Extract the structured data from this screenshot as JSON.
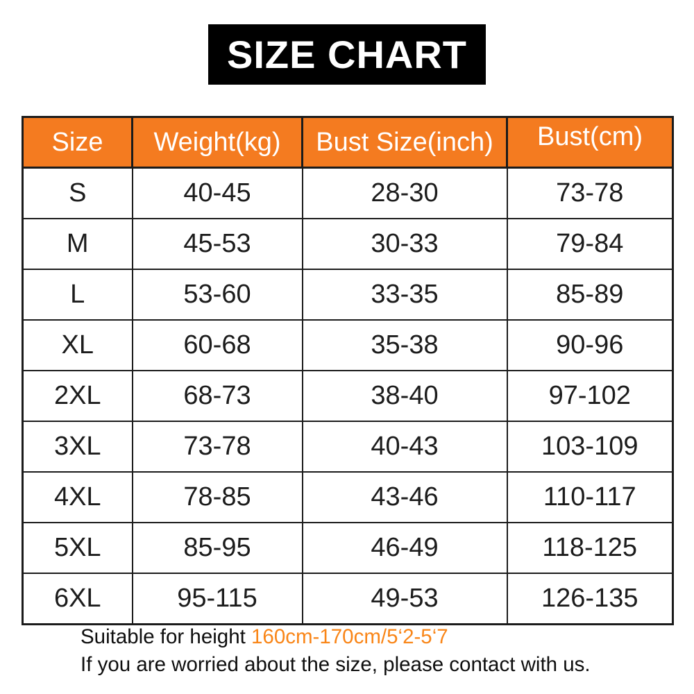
{
  "colors": {
    "banner_bg": "#000000",
    "banner_text": "#ffffff",
    "header_bg": "#F47B20",
    "header_text": "#ffffff",
    "body_text": "#1c1c1c",
    "border": "#1b1b1b",
    "highlight_text": "#F98517",
    "page_bg": "#ffffff"
  },
  "chart_data": {
    "type": "table",
    "title": "SIZE CHART",
    "columns": [
      "Size",
      "Weight(kg)",
      "Bust Size(inch)",
      "Bust(cm)"
    ],
    "rows": [
      [
        "S",
        "40-45",
        "28-30",
        "73-78"
      ],
      [
        "M",
        "45-53",
        "30-33",
        "79-84"
      ],
      [
        "L",
        "53-60",
        "33-35",
        "85-89"
      ],
      [
        "XL",
        "60-68",
        "35-38",
        "90-96"
      ],
      [
        "2XL",
        "68-73",
        "38-40",
        "97-102"
      ],
      [
        "3XL",
        "73-78",
        "40-43",
        "103-109"
      ],
      [
        "4XL",
        "78-85",
        "43-46",
        "110-117"
      ],
      [
        "5XL",
        "85-95",
        "46-49",
        "118-125"
      ],
      [
        "6XL",
        "95-115",
        "49-53",
        "126-135"
      ]
    ],
    "layout": {
      "grid": "full-borders",
      "header_position": "top"
    }
  },
  "footer": {
    "line1_prefix": "Suitable for height ",
    "line1_highlight": "160cm-170cm/5‘2-5‘7",
    "line2": "If you are worried about the size, please contact with us."
  }
}
